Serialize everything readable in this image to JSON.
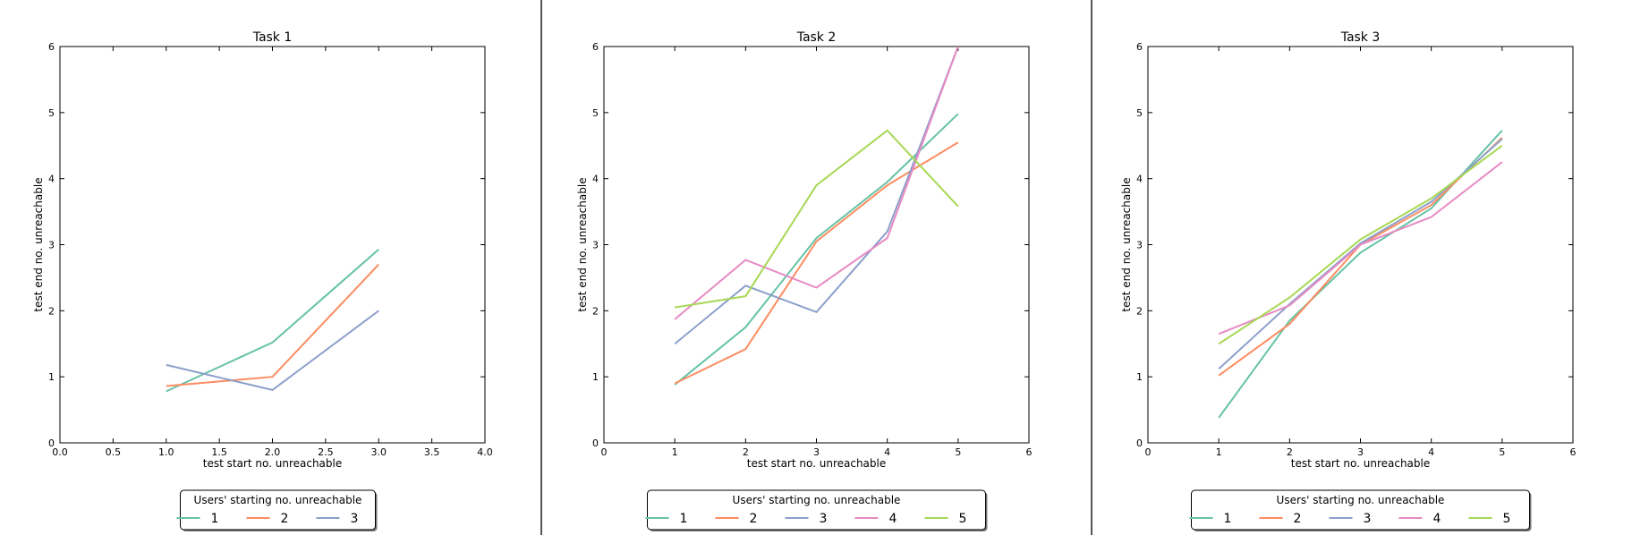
{
  "chart_data": [
    {
      "type": "line",
      "title": "Task 1",
      "xlabel": "test start no. unreachable",
      "ylabel": "test end no. unreachable",
      "xlim": [
        0,
        4
      ],
      "ylim": [
        0,
        6
      ],
      "xticks": [
        "0.0",
        "0.5",
        "1.0",
        "1.5",
        "2.0",
        "2.5",
        "3.0",
        "3.5",
        "4.0"
      ],
      "xtick_values": [
        0,
        0.5,
        1,
        1.5,
        2,
        2.5,
        3,
        3.5,
        4
      ],
      "yticks": [
        "0",
        "1",
        "2",
        "3",
        "4",
        "5",
        "6"
      ],
      "ytick_values": [
        0,
        1,
        2,
        3,
        4,
        5,
        6
      ],
      "grid": false,
      "legend": {
        "title": "Users' starting no. unreachable",
        "position": "bottom-center"
      },
      "x": [
        1,
        2,
        3
      ],
      "series": [
        {
          "name": "1",
          "color": "#66c2a5",
          "values": [
            0.78,
            1.52,
            2.93
          ]
        },
        {
          "name": "2",
          "color": "#fc8d62",
          "values": [
            0.86,
            1.0,
            2.7
          ]
        },
        {
          "name": "3",
          "color": "#8da0cb",
          "values": [
            1.18,
            0.8,
            2.0
          ]
        }
      ]
    },
    {
      "type": "line",
      "title": "Task 2",
      "xlabel": "test start no. unreachable",
      "ylabel": "test end no. unreachable",
      "xlim": [
        0,
        6
      ],
      "ylim": [
        0,
        6
      ],
      "xticks": [
        "0",
        "1",
        "2",
        "3",
        "4",
        "5",
        "6"
      ],
      "xtick_values": [
        0,
        1,
        2,
        3,
        4,
        5,
        6
      ],
      "yticks": [
        "0",
        "1",
        "2",
        "3",
        "4",
        "5",
        "6"
      ],
      "ytick_values": [
        0,
        1,
        2,
        3,
        4,
        5,
        6
      ],
      "grid": false,
      "legend": {
        "title": "Users' starting no. unreachable",
        "position": "bottom-center"
      },
      "x": [
        1,
        2,
        3,
        4,
        5
      ],
      "series": [
        {
          "name": "1",
          "color": "#66c2a5",
          "values": [
            0.88,
            1.75,
            3.1,
            3.95,
            4.98
          ]
        },
        {
          "name": "2",
          "color": "#fc8d62",
          "values": [
            0.9,
            1.42,
            3.05,
            3.9,
            4.55
          ]
        },
        {
          "name": "3",
          "color": "#8da0cb",
          "values": [
            1.5,
            2.38,
            1.98,
            3.2,
            6.0
          ]
        },
        {
          "name": "4",
          "color": "#e78ac3",
          "values": [
            1.87,
            2.77,
            2.35,
            3.1,
            6.0
          ]
        },
        {
          "name": "5",
          "color": "#a6d854",
          "values": [
            2.05,
            2.22,
            3.9,
            4.73,
            3.58
          ]
        }
      ]
    },
    {
      "type": "line",
      "title": "Task 3",
      "xlabel": "test start no. unreachable",
      "ylabel": "test end no. unreachable",
      "xlim": [
        0,
        6
      ],
      "ylim": [
        0,
        6
      ],
      "xticks": [
        "0",
        "1",
        "2",
        "3",
        "4",
        "5",
        "6"
      ],
      "xtick_values": [
        0,
        1,
        2,
        3,
        4,
        5,
        6
      ],
      "yticks": [
        "0",
        "1",
        "2",
        "3",
        "4",
        "5",
        "6"
      ],
      "ytick_values": [
        0,
        1,
        2,
        3,
        4,
        5,
        6
      ],
      "grid": false,
      "legend": {
        "title": "Users' starting no. unreachable",
        "position": "bottom-center"
      },
      "x": [
        1,
        2,
        3,
        4,
        5
      ],
      "series": [
        {
          "name": "1",
          "color": "#66c2a5",
          "values": [
            0.38,
            1.85,
            2.88,
            3.55,
            4.73
          ]
        },
        {
          "name": "2",
          "color": "#fc8d62",
          "values": [
            1.02,
            1.8,
            3.0,
            3.6,
            4.62
          ]
        },
        {
          "name": "3",
          "color": "#8da0cb",
          "values": [
            1.12,
            2.1,
            3.02,
            3.65,
            4.6
          ]
        },
        {
          "name": "4",
          "color": "#e78ac3",
          "values": [
            1.65,
            2.08,
            3.0,
            3.42,
            4.25
          ]
        },
        {
          "name": "5",
          "color": "#a6d854",
          "values": [
            1.5,
            2.2,
            3.08,
            3.7,
            4.5
          ]
        }
      ]
    }
  ]
}
